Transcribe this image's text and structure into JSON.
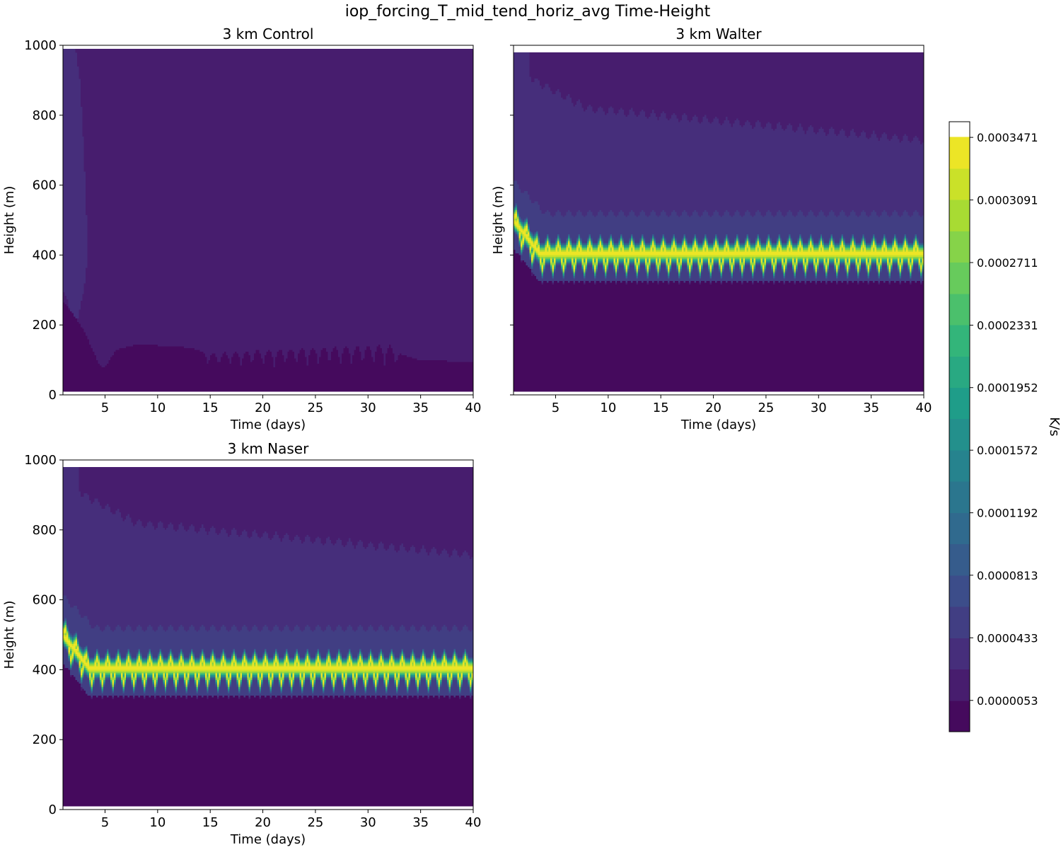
{
  "figure": {
    "suptitle": "iop_forcing_T_mid_tend_horiz_avg Time-Height"
  },
  "chart_data": {
    "type": "contourf",
    "variable": "iop_forcing_T_mid_tend_horiz_avg",
    "colormap": "viridis_r",
    "units": "K/s",
    "colorbar": {
      "label": "K/s",
      "range": [
        -1.37e-05,
        0.0003566
      ],
      "level_step": 1.9e-05,
      "tick_labels": [
        "0.0000053",
        "0.0000433",
        "0.0000813",
        "0.0001192",
        "0.0001572",
        "0.0001952",
        "0.0002331",
        "0.0002711",
        "0.0003091",
        "0.0003471"
      ],
      "tick_values": [
        5.3e-06,
        4.33e-05,
        8.13e-05,
        0.0001192,
        0.0001572,
        0.0001952,
        0.0002331,
        0.0002711,
        0.0003091,
        0.0003471
      ]
    },
    "panels": [
      {
        "id": "control",
        "title": "3 km Control",
        "xlabel": "Time (days)",
        "ylabel": "Height (m)",
        "xlim": [
          1,
          40
        ],
        "ylim": [
          0,
          1000
        ],
        "xticks": [
          5,
          10,
          15,
          20,
          25,
          30,
          35,
          40
        ],
        "yticks": [
          0,
          200,
          400,
          600,
          800,
          1000
        ],
        "show_ytick_labels": true,
        "data_top": 990,
        "data_bottom": 10,
        "regions": [
          {
            "name": "background",
            "value": 1.6e-05
          },
          {
            "name": "surface-layer-top-days-5-plus",
            "value": 4e-06,
            "x": [
              1.0,
              2.0,
              3.0,
              4.0,
              4.5,
              5.0,
              6.0,
              8.0,
              12.0,
              14.0,
              15.0,
              17.0,
              20.0,
              24.0,
              28.0,
              32.0,
              33.0,
              35.0,
              40.0
            ],
            "y_top": [
              270,
              230,
              185,
              120,
              85,
              80,
              130,
              145,
              140,
              130,
              120,
              125,
              130,
              135,
              140,
              145,
              120,
              100,
              95
            ]
          },
          {
            "name": "upper-left-plume",
            "value": 3e-05,
            "x": [
              1.0,
              1.4,
              1.8,
              2.2,
              2.6,
              3.0,
              3.3
            ],
            "y_top": [
              990,
              990,
              990,
              990,
              900,
              700,
              480
            ],
            "y_bottom": [
              300,
              280,
              220,
              180,
              250,
              300,
              380
            ]
          }
        ]
      },
      {
        "id": "walter",
        "title": "3 km Walter",
        "xlabel": "Time (days)",
        "ylabel": "Height (m)",
        "xlim": [
          1,
          40
        ],
        "ylim": [
          0,
          1000
        ],
        "xticks": [
          5,
          10,
          15,
          20,
          25,
          30,
          35,
          40
        ],
        "yticks": [
          0,
          200,
          400,
          600,
          800,
          1000
        ],
        "show_ytick_labels": false,
        "data_top": 980,
        "data_bottom": 10,
        "band": {
          "start_height": 500,
          "settle_height": 405,
          "settle_day": 3.5,
          "half_width": 45,
          "peak_value": 0.000345,
          "oscillation_period_days": 1.0
        },
        "mid_layer": {
          "top": 520,
          "value": 5.5e-05
        },
        "upper_layer": {
          "top_start": 980,
          "top_end": 730,
          "value": 2.8e-05
        },
        "background_value": 1.6e-05,
        "below_band_value": 2e-06
      },
      {
        "id": "naser",
        "title": "3 km Naser",
        "xlabel": "Time (days)",
        "ylabel": "Height (m)",
        "xlim": [
          1,
          40
        ],
        "ylim": [
          0,
          1000
        ],
        "xticks": [
          5,
          10,
          15,
          20,
          25,
          30,
          35,
          40
        ],
        "yticks": [
          0,
          200,
          400,
          600,
          800,
          1000
        ],
        "show_ytick_labels": true,
        "data_top": 980,
        "data_bottom": 10,
        "band": {
          "start_height": 500,
          "settle_height": 405,
          "settle_day": 3.5,
          "half_width": 45,
          "peak_value": 0.000345,
          "oscillation_period_days": 1.0
        },
        "mid_layer": {
          "top": 520,
          "value": 5.5e-05
        },
        "upper_layer": {
          "top_start": 980,
          "top_end": 730,
          "value": 2.8e-05
        },
        "background_value": 1.6e-05,
        "below_band_value": 2e-06
      }
    ]
  }
}
